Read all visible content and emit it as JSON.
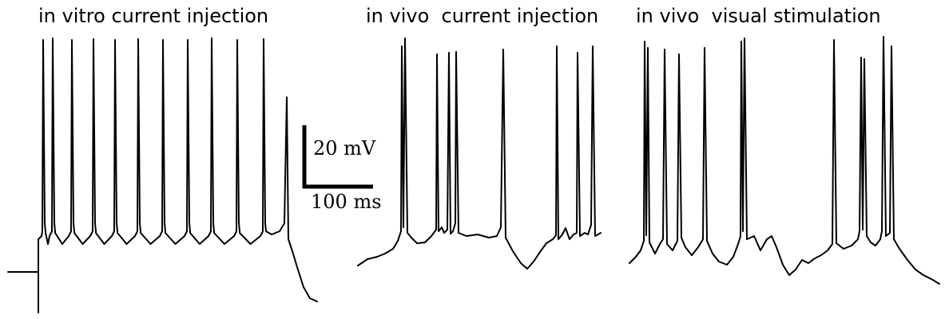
{
  "panels": [
    {
      "title": "in vitro current injection"
    },
    {
      "title": "in vivo  current injection"
    },
    {
      "title": "in vivo  visual stimulation"
    }
  ],
  "scale_bar": {
    "voltage_label": "20 mV",
    "time_label": "100 ms"
  }
}
